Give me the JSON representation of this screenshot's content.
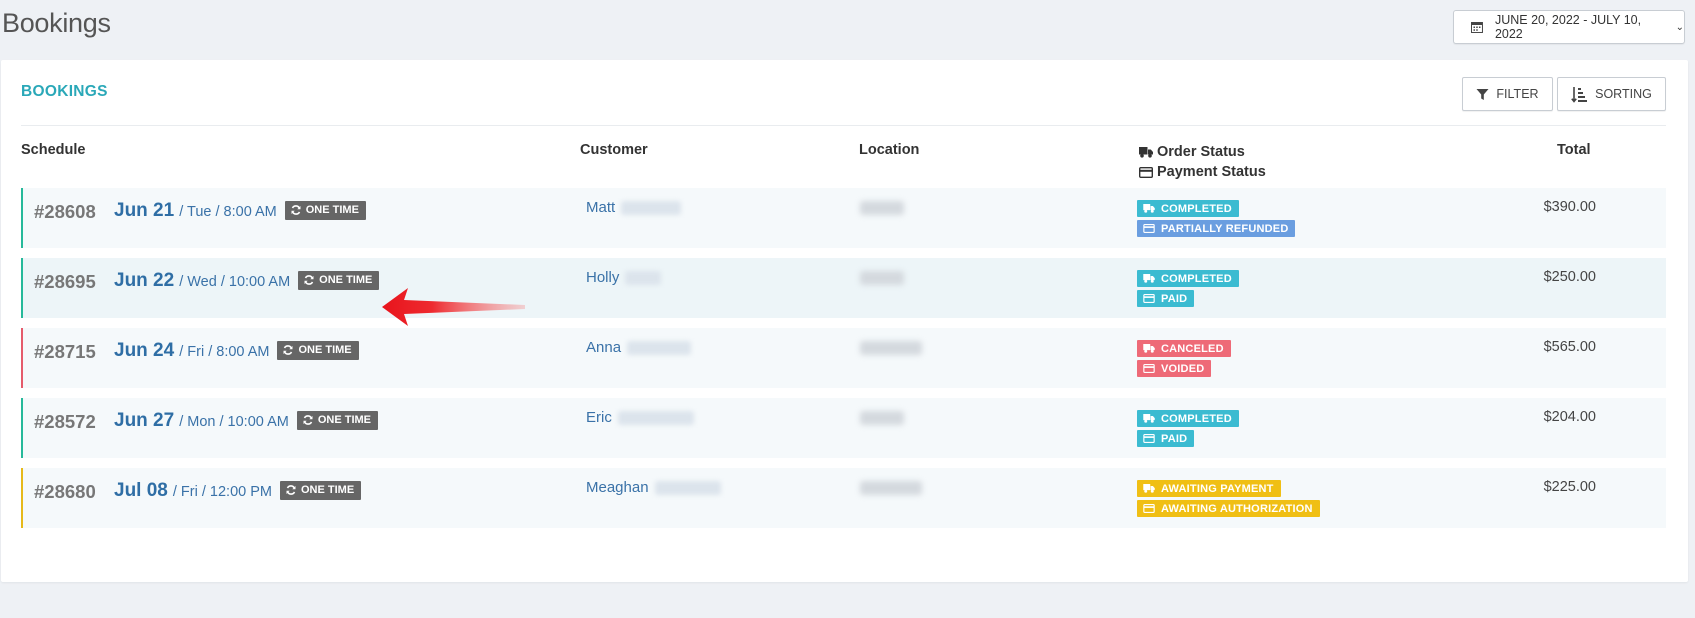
{
  "page": {
    "title": "Bookings"
  },
  "date_range": {
    "label": "JUNE 20, 2022 - JULY 10, 2022"
  },
  "card": {
    "title": "BOOKINGS"
  },
  "toolbar": {
    "filter_label": "FILTER",
    "sorting_label": "SORTING"
  },
  "columns": {
    "schedule": "Schedule",
    "customer": "Customer",
    "location": "Location",
    "order_status": "Order Status",
    "payment_status": "Payment Status",
    "total": "Total"
  },
  "bookings": [
    {
      "id": "#28608",
      "date": "Jun 21",
      "detail": "/ Tue / 8:00 AM",
      "frequency": "ONE TIME",
      "customer_first": "Matt",
      "order_status": "COMPLETED",
      "payment_status": "PARTIALLY REFUNDED",
      "total": "$390.00",
      "order_color": "#3bbbd1",
      "payment_color": "#6a9ee0",
      "accent": "#26b99a"
    },
    {
      "id": "#28695",
      "date": "Jun 22",
      "detail": "/ Wed / 10:00 AM",
      "frequency": "ONE TIME",
      "customer_first": "Holly",
      "order_status": "COMPLETED",
      "payment_status": "PAID",
      "total": "$250.00",
      "order_color": "#3bbbd1",
      "payment_color": "#3bbbd1",
      "accent": "#26b99a"
    },
    {
      "id": "#28715",
      "date": "Jun 24",
      "detail": "/ Fri / 8:00 AM",
      "frequency": "ONE TIME",
      "customer_first": "Anna",
      "order_status": "CANCELED",
      "payment_status": "VOIDED",
      "total": "$565.00",
      "order_color": "#ee6a77",
      "payment_color": "#ee6a77",
      "accent": "#e55b6b"
    },
    {
      "id": "#28572",
      "date": "Jun 27",
      "detail": "/ Mon / 10:00 AM",
      "frequency": "ONE TIME",
      "customer_first": "Eric",
      "order_status": "COMPLETED",
      "payment_status": "PAID",
      "total": "$204.00",
      "order_color": "#3bbbd1",
      "payment_color": "#3bbbd1",
      "accent": "#26b99a"
    },
    {
      "id": "#28680",
      "date": "Jul 08",
      "detail": "/ Fri / 12:00 PM",
      "frequency": "ONE TIME",
      "customer_first": "Meaghan",
      "order_status": "AWAITING PAYMENT",
      "payment_status": "AWAITING AUTHORIZATION",
      "total": "$225.00",
      "order_color": "#f0bf14",
      "payment_color": "#f0bf14",
      "accent": "#e6b91a"
    }
  ],
  "icons": {
    "date": "calendar-icon",
    "filter": "filter-icon",
    "sorting": "sort-icon",
    "order": "truck-icon",
    "payment": "credit-card-icon",
    "recurring": "refresh-icon"
  }
}
